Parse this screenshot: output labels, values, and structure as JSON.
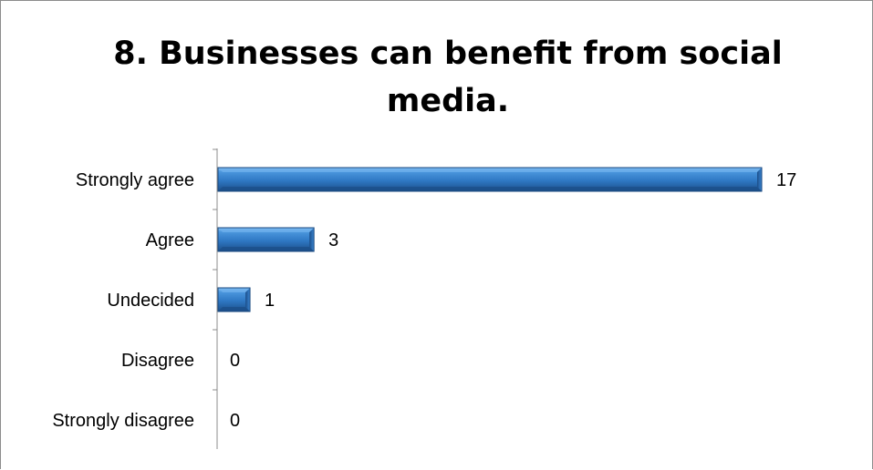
{
  "chart_data": {
    "type": "bar",
    "orientation": "horizontal",
    "title": "8. Businesses can benefit from social media.",
    "xlabel": "",
    "ylabel": "",
    "categories": [
      "Strongly agree",
      "Agree",
      "Undecided",
      "Disagree",
      "Strongly disagree"
    ],
    "values": [
      17,
      3,
      1,
      0,
      0
    ],
    "xlim": [
      0,
      17
    ],
    "grid": false,
    "legend": "none",
    "data_labels": true,
    "bar_color": "#2f78c4",
    "bar_highlight": "#6fb0ec",
    "bar_shadow": "#1c4f8a"
  }
}
